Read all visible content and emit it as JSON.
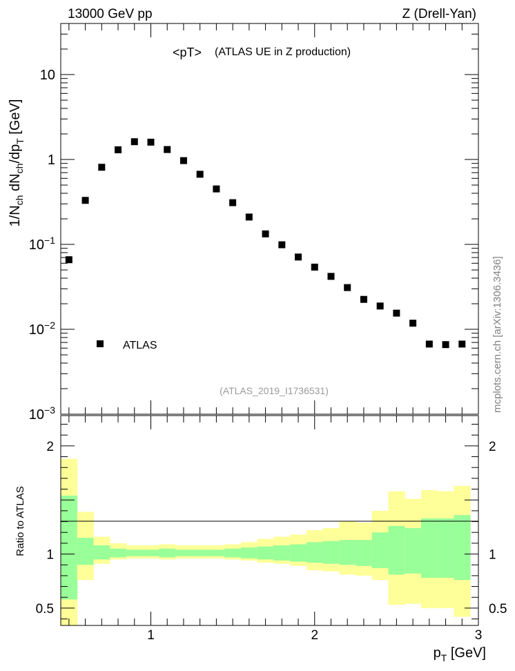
{
  "header": {
    "left": "13000 GeV pp",
    "right": "Z (Drell-Yan)"
  },
  "side_label": "mcplots.cern.ch [arXiv:1306.3436]",
  "chart_data": [
    {
      "type": "scatter",
      "title": "<pT>",
      "subtitle": "(ATLAS UE in Z production)",
      "watermark": "(ATLAS_2019_I1736531)",
      "ylabel": "1/N_ch dN_ch/dp_T [GeV]",
      "yscale": "log",
      "ylim": [
        0.001,
        40
      ],
      "xlim": [
        0.45,
        3.0
      ],
      "yticks": [
        {
          "value": 10,
          "label": "10"
        },
        {
          "value": 1,
          "label": "1"
        },
        {
          "value": 0.1,
          "label": "10",
          "exp": "−1"
        },
        {
          "value": 0.01,
          "label": "10",
          "exp": "−2"
        },
        {
          "value": 0.001,
          "label": "10",
          "exp": "−3"
        }
      ],
      "legend": {
        "position": "bottom-left",
        "entries": [
          "ATLAS"
        ]
      },
      "series": [
        {
          "name": "ATLAS",
          "marker": "square",
          "x": [
            0.5,
            0.6,
            0.7,
            0.8,
            0.9,
            1.0,
            1.1,
            1.2,
            1.3,
            1.4,
            1.5,
            1.6,
            1.7,
            1.8,
            1.9,
            2.0,
            2.1,
            2.2,
            2.3,
            2.4,
            2.5,
            2.6,
            2.7,
            2.8,
            2.9
          ],
          "y": [
            0.066,
            0.33,
            0.81,
            1.3,
            1.62,
            1.6,
            1.31,
            0.97,
            0.67,
            0.45,
            0.31,
            0.21,
            0.133,
            0.099,
            0.071,
            0.054,
            0.042,
            0.031,
            0.0225,
            0.0188,
            0.0155,
            0.0118,
            0.0067,
            0.0066,
            0.0067
          ]
        }
      ]
    },
    {
      "type": "area",
      "ylabel": "Ratio to ATLAS",
      "xlabel": "p_T [GeV]",
      "xlim": [
        0.45,
        3.0
      ],
      "ylim": [
        0.34,
        2.28
      ],
      "xticks": [
        {
          "value": 1,
          "label": "1"
        },
        {
          "value": 2,
          "label": "2"
        },
        {
          "value": 3,
          "label": "3"
        }
      ],
      "yticks": [
        {
          "value": 2,
          "label": "2"
        },
        {
          "value": 1,
          "label": "1"
        },
        {
          "value": 0.5,
          "label": "0.5"
        }
      ],
      "reference_line": 1,
      "colors": {
        "outer_band": "#ffff99",
        "inner_band": "#99ff99",
        "markers": "#000000"
      },
      "bins": {
        "edges": [
          0.45,
          0.55,
          0.65,
          0.75,
          0.85,
          0.95,
          1.05,
          1.15,
          1.25,
          1.35,
          1.45,
          1.55,
          1.65,
          1.75,
          1.85,
          1.95,
          2.05,
          2.15,
          2.25,
          2.35,
          2.45,
          2.55,
          2.65,
          2.75,
          2.85,
          2.95
        ],
        "outer_low": [
          0.34,
          0.76,
          0.91,
          0.95,
          0.96,
          0.96,
          0.95,
          0.96,
          0.96,
          0.96,
          0.95,
          0.94,
          0.92,
          0.91,
          0.89,
          0.85,
          0.84,
          0.81,
          0.8,
          0.76,
          0.53,
          0.54,
          0.5,
          0.5,
          0.42
        ],
        "outer_high": [
          1.88,
          1.39,
          1.16,
          1.1,
          1.08,
          1.08,
          1.09,
          1.08,
          1.08,
          1.08,
          1.09,
          1.11,
          1.14,
          1.16,
          1.18,
          1.22,
          1.24,
          1.3,
          1.29,
          1.4,
          1.58,
          1.51,
          1.59,
          1.58,
          1.63
        ],
        "inner_low": [
          0.58,
          0.9,
          0.95,
          0.97,
          0.98,
          0.98,
          0.97,
          0.98,
          0.98,
          0.98,
          0.97,
          0.96,
          0.95,
          0.94,
          0.93,
          0.92,
          0.91,
          0.9,
          0.89,
          0.87,
          0.81,
          0.82,
          0.78,
          0.78,
          0.76
        ],
        "inner_high": [
          1.54,
          1.15,
          1.08,
          1.05,
          1.04,
          1.04,
          1.05,
          1.04,
          1.04,
          1.04,
          1.05,
          1.06,
          1.07,
          1.08,
          1.09,
          1.11,
          1.12,
          1.13,
          1.13,
          1.2,
          1.26,
          1.24,
          1.33,
          1.33,
          1.36
        ]
      }
    }
  ]
}
